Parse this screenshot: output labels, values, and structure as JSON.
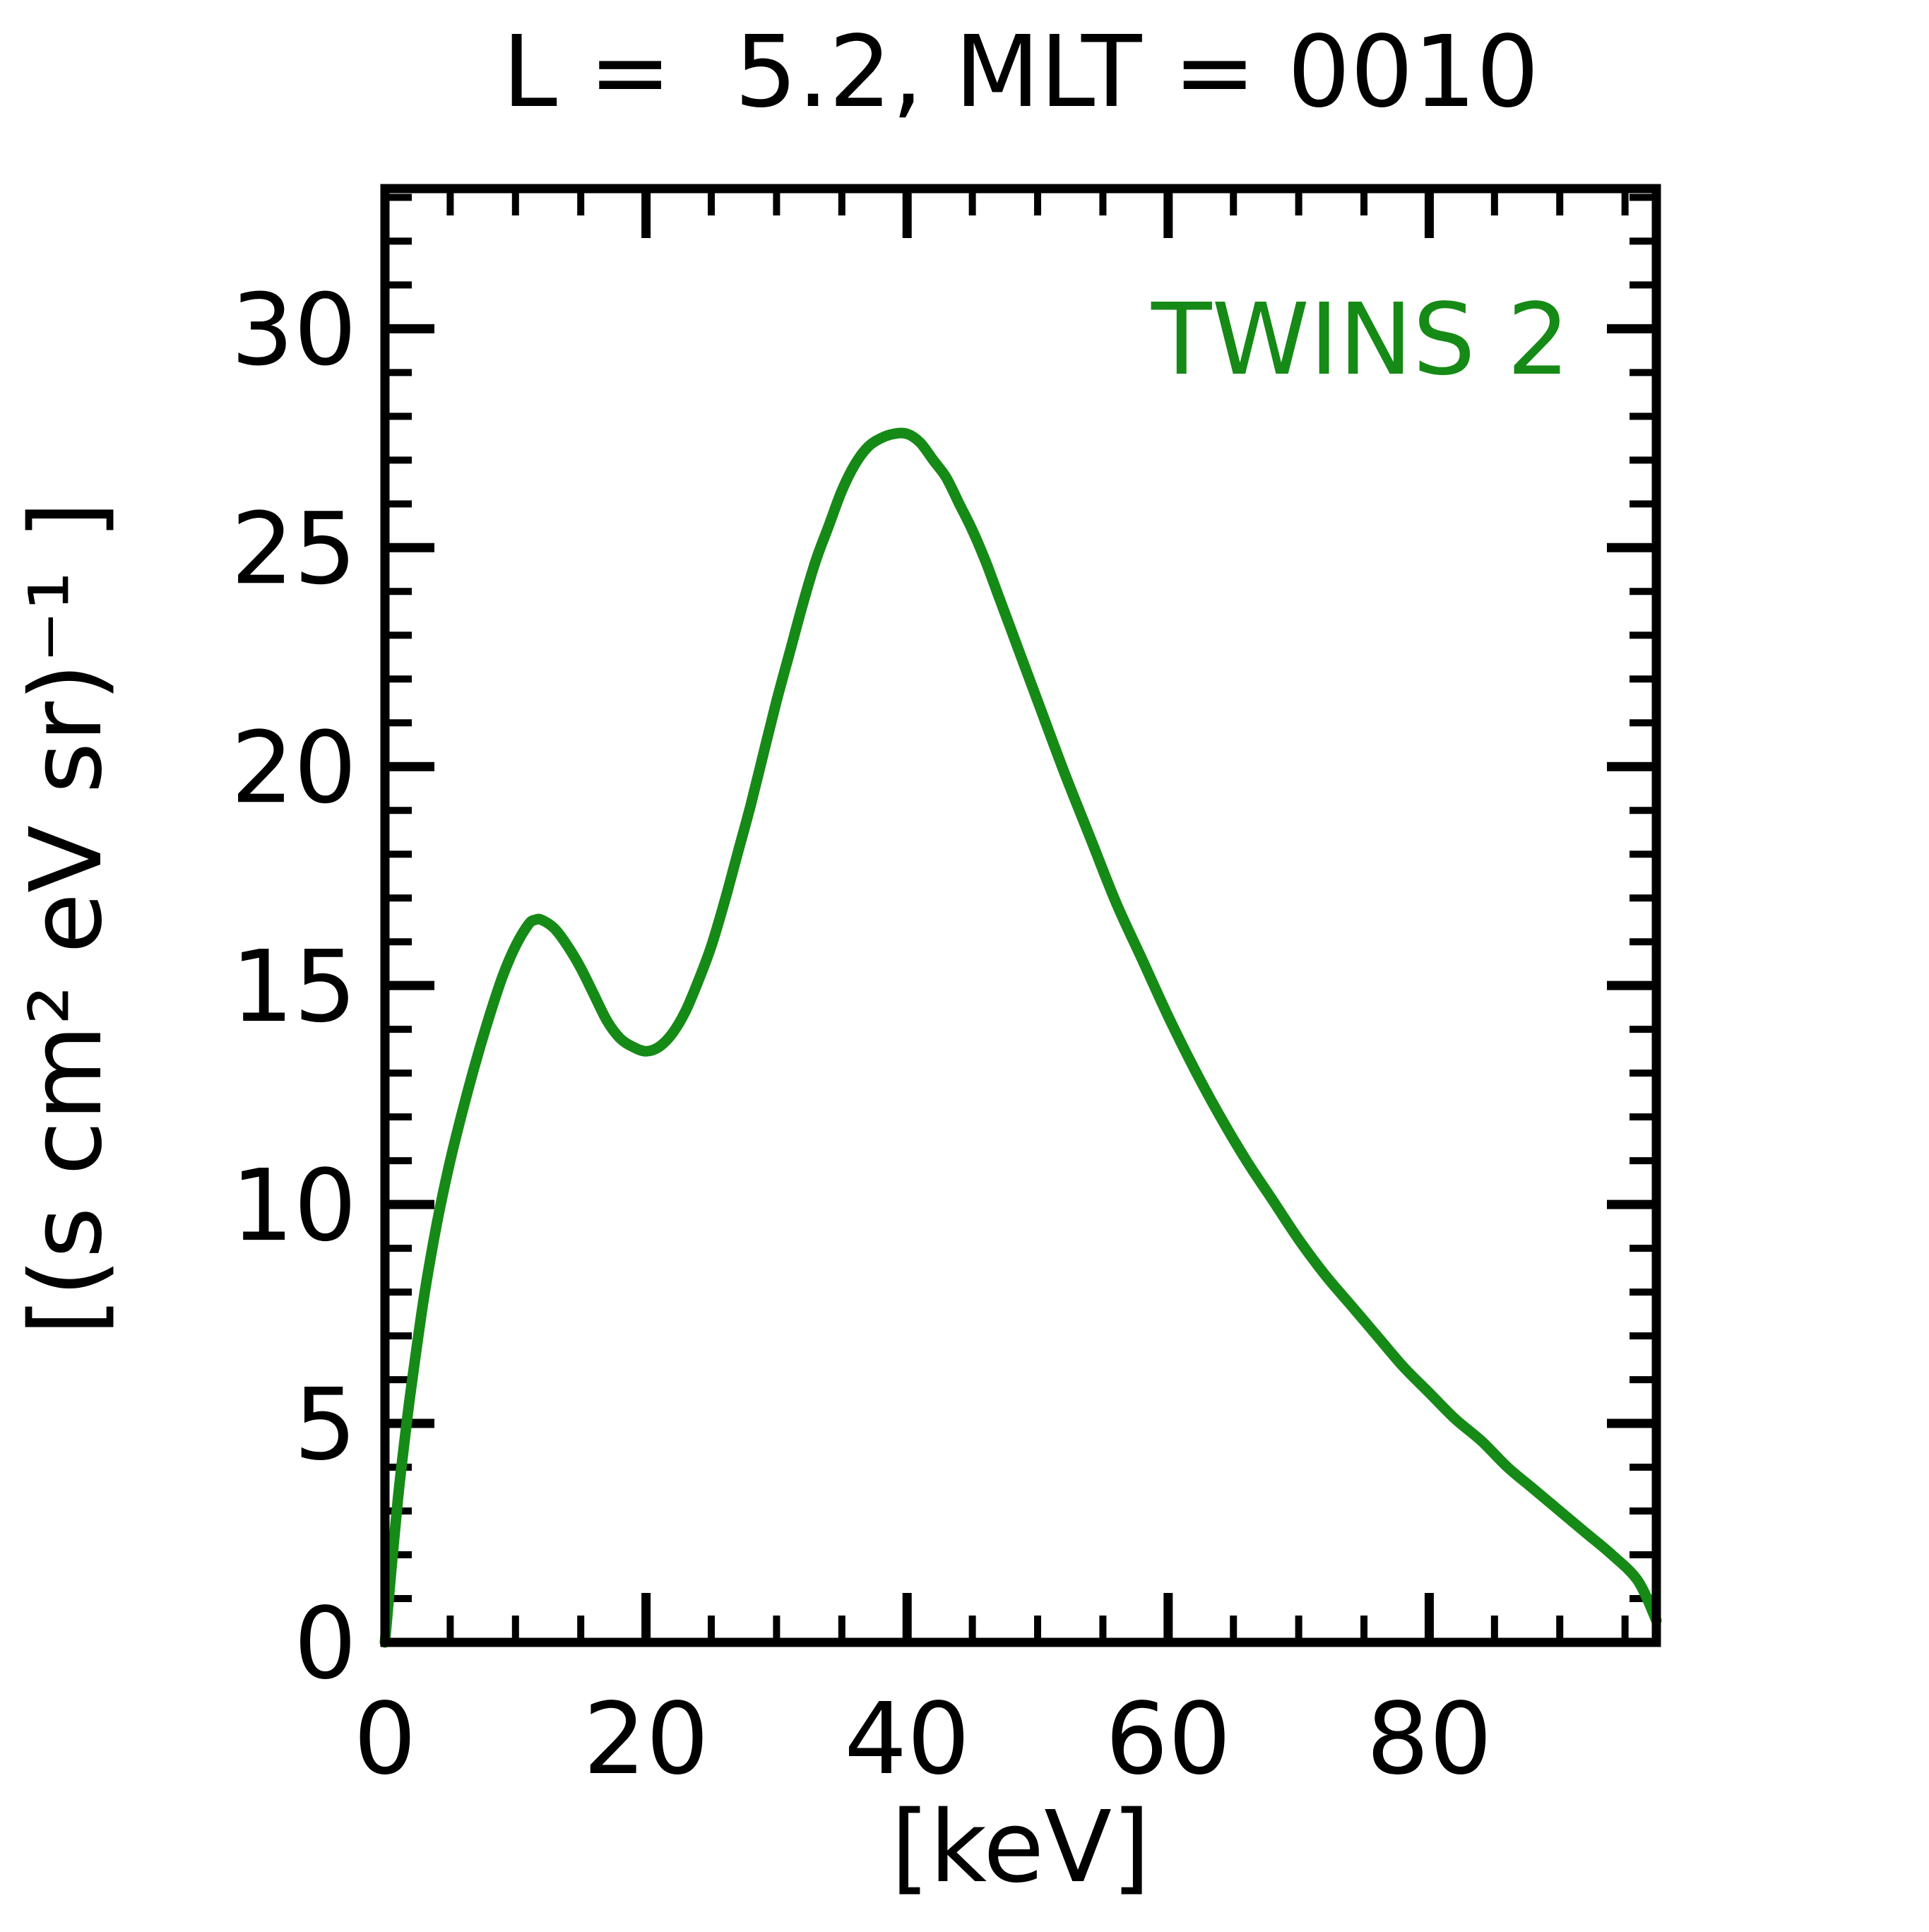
{
  "chart": {
    "title": "L =  5.2, MLT = 0010",
    "xlabel": "[keV]",
    "ylabel": "[(s cm² eV sr)⁻¹ ]",
    "legend": "TWINS 2",
    "colors": {
      "series": "#168A16",
      "axis": "#000000",
      "background": "#ffffff"
    }
  },
  "chart_data": {
    "type": "line",
    "title": "L =  5.2, MLT = 0010",
    "xlabel": "[keV]",
    "ylabel": "[(s cm² eV sr)⁻¹ ]",
    "legend_position": "upper right",
    "grid": false,
    "xlim": [
      0,
      97.4
    ],
    "ylim": [
      0,
      33.2
    ],
    "x_major_ticks": [
      0,
      20,
      40,
      60,
      80
    ],
    "x_tick_labels": [
      "0",
      "20",
      "40",
      "60",
      "80"
    ],
    "x_minor_step": 5,
    "y_major_ticks": [
      0,
      5,
      10,
      15,
      20,
      25,
      30
    ],
    "y_tick_labels": [
      "0",
      "5",
      "10",
      "15",
      "20",
      "25",
      "30"
    ],
    "y_minor_step": 1,
    "series": [
      {
        "name": "TWINS 2",
        "color": "#168A16",
        "features": {
          "first_peak": {
            "x": 11.5,
            "y": 16.5
          },
          "local_min": {
            "x": 20,
            "y": 13.5
          },
          "main_peak": {
            "x": 39.5,
            "y": 27.6
          },
          "end": {
            "x": 97.4,
            "y": 0.5
          }
        },
        "points": [
          [
            0,
            0.0
          ],
          [
            0.5,
            1.7
          ],
          [
            1,
            3.3
          ],
          [
            1.5,
            4.6
          ],
          [
            2,
            5.8
          ],
          [
            3,
            7.9
          ],
          [
            4,
            9.6
          ],
          [
            5,
            11.0
          ],
          [
            6,
            12.2
          ],
          [
            7,
            13.3
          ],
          [
            8,
            14.3
          ],
          [
            9,
            15.2
          ],
          [
            10,
            15.9
          ],
          [
            11,
            16.4
          ],
          [
            11.5,
            16.5
          ],
          [
            12,
            16.5
          ],
          [
            13,
            16.3
          ],
          [
            14,
            15.9
          ],
          [
            15,
            15.4
          ],
          [
            16,
            14.8
          ],
          [
            17,
            14.2
          ],
          [
            18,
            13.8
          ],
          [
            19,
            13.6
          ],
          [
            20,
            13.5
          ],
          [
            21,
            13.6
          ],
          [
            22,
            13.9
          ],
          [
            23,
            14.4
          ],
          [
            24,
            15.1
          ],
          [
            25,
            15.9
          ],
          [
            26,
            16.9
          ],
          [
            27,
            18.0
          ],
          [
            28,
            19.1
          ],
          [
            29,
            20.3
          ],
          [
            30,
            21.5
          ],
          [
            31,
            22.6
          ],
          [
            32,
            23.7
          ],
          [
            33,
            24.7
          ],
          [
            34,
            25.5
          ],
          [
            35,
            26.3
          ],
          [
            36,
            26.9
          ],
          [
            37,
            27.3
          ],
          [
            38,
            27.5
          ],
          [
            39,
            27.6
          ],
          [
            40,
            27.6
          ],
          [
            41,
            27.4
          ],
          [
            42,
            27.0
          ],
          [
            43,
            26.6
          ],
          [
            44,
            26.0
          ],
          [
            45,
            25.4
          ],
          [
            46,
            24.7
          ],
          [
            47,
            23.9
          ],
          [
            48,
            23.1
          ],
          [
            49,
            22.3
          ],
          [
            50,
            21.5
          ],
          [
            52,
            19.9
          ],
          [
            54,
            18.4
          ],
          [
            56,
            16.9
          ],
          [
            58,
            15.6
          ],
          [
            60,
            14.3
          ],
          [
            62,
            13.1
          ],
          [
            64,
            12.0
          ],
          [
            66,
            11.0
          ],
          [
            68,
            10.1
          ],
          [
            70,
            9.2
          ],
          [
            72,
            8.4
          ],
          [
            74,
            7.7
          ],
          [
            76,
            7.0
          ],
          [
            78,
            6.3
          ],
          [
            80,
            5.7
          ],
          [
            82,
            5.1
          ],
          [
            84,
            4.6
          ],
          [
            86,
            4.0
          ],
          [
            88,
            3.5
          ],
          [
            90,
            3.0
          ],
          [
            92,
            2.5
          ],
          [
            94,
            2.0
          ],
          [
            96,
            1.4
          ],
          [
            97.4,
            0.5
          ]
        ]
      }
    ]
  }
}
